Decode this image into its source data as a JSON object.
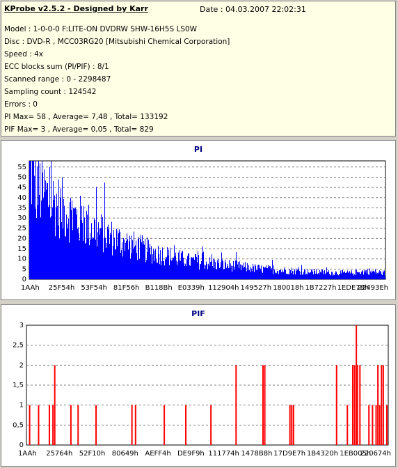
{
  "info": {
    "title": "KProbe v2.5.2 - Designed by Karr",
    "date": "Date : 04.03.2007 22:02:31",
    "lines": [
      "Model : 1-0-0-0 F:LITE-ON DVDRW SHW-16H5S  LS0W",
      "Disc : DVD-R , MCC03RG20 [Mitsubishi Chemical Corporation]",
      "Speed : 4x",
      "ECC blocks sum (PI/PIF) : 8/1",
      "Scanned range : 0 - 2298487",
      "Sampling count : 124542",
      "Errors : 0",
      "PI Max= 58 , Average= 7,48 , Total= 133192",
      "PIF Max= 3 , Average= 0,05 , Total= 829"
    ]
  },
  "chart_data": [
    {
      "type": "bar",
      "title": "PI",
      "color": "#0000ff",
      "ylim": [
        0,
        58
      ],
      "yticks": [
        "0",
        "5",
        "10",
        "15",
        "20",
        "25",
        "30",
        "35",
        "40",
        "45",
        "50",
        "55"
      ],
      "xticks": [
        "1AAh",
        "25F54h",
        "53F54h",
        "81F56h",
        "B118Bh",
        "E0339h",
        "112904h",
        "149527h",
        "180018h",
        "1B7227h",
        "1EDE78h",
        "22493Eh"
      ],
      "profile": [
        [
          0,
          58
        ],
        [
          0.01,
          48
        ],
        [
          0.03,
          44
        ],
        [
          0.05,
          40
        ],
        [
          0.08,
          36
        ],
        [
          0.12,
          31
        ],
        [
          0.16,
          27
        ],
        [
          0.2,
          23
        ],
        [
          0.25,
          19
        ],
        [
          0.3,
          16
        ],
        [
          0.35,
          13
        ],
        [
          0.4,
          11
        ],
        [
          0.45,
          9
        ],
        [
          0.5,
          8
        ],
        [
          0.55,
          7
        ],
        [
          0.6,
          6
        ],
        [
          0.65,
          5
        ],
        [
          0.7,
          4.5
        ],
        [
          0.8,
          3.5
        ],
        [
          0.9,
          3
        ],
        [
          0.95,
          4
        ],
        [
          1.0,
          3
        ]
      ]
    },
    {
      "type": "bar",
      "title": "PIF",
      "color": "#ff0000",
      "ylim": [
        0,
        3
      ],
      "yticks": [
        "0",
        "0,5",
        "1",
        "1,5",
        "2",
        "2,5",
        "3"
      ],
      "xticks": [
        "1AAh",
        "25764h",
        "52F10h",
        "80649h",
        "AEFF4h",
        "DE9F9h",
        "111774h",
        "1478B8h",
        "17D9E7h",
        "1B4320h",
        "1EB005h",
        "220674h"
      ],
      "bars": [
        [
          0.005,
          1
        ],
        [
          0.03,
          1
        ],
        [
          0.06,
          1
        ],
        [
          0.07,
          1
        ],
        [
          0.075,
          2
        ],
        [
          0.12,
          1
        ],
        [
          0.14,
          1
        ],
        [
          0.19,
          1
        ],
        [
          0.29,
          1
        ],
        [
          0.3,
          1
        ],
        [
          0.38,
          1
        ],
        [
          0.44,
          1
        ],
        [
          0.51,
          1
        ],
        [
          0.58,
          2
        ],
        [
          0.655,
          2
        ],
        [
          0.66,
          2
        ],
        [
          0.73,
          1
        ],
        [
          0.735,
          1
        ],
        [
          0.74,
          1
        ],
        [
          0.86,
          2
        ],
        [
          0.98,
          1
        ],
        [
          0.89,
          1
        ],
        [
          0.905,
          2
        ],
        [
          0.91,
          2
        ],
        [
          0.915,
          3
        ],
        [
          0.918,
          2
        ],
        [
          0.925,
          2
        ],
        [
          0.95,
          1
        ],
        [
          0.96,
          1
        ],
        [
          0.97,
          1
        ],
        [
          0.975,
          2
        ],
        [
          0.985,
          2
        ],
        [
          0.99,
          2
        ],
        [
          1.0,
          1
        ]
      ]
    }
  ]
}
